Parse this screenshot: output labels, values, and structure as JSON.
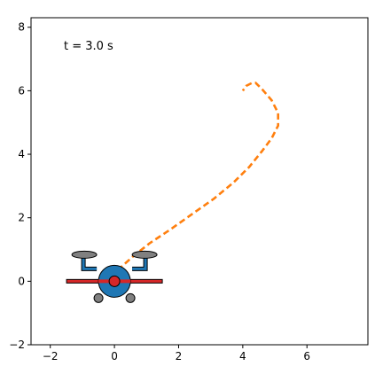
{
  "chart_data": {
    "type": "line",
    "title": "",
    "xlabel": "",
    "ylabel": "",
    "xlim": [
      -2.6,
      7.9
    ],
    "ylim": [
      -2.0,
      8.3
    ],
    "xticks": [
      -2,
      0,
      2,
      4,
      6
    ],
    "xtick_labels": [
      "−2",
      "0",
      "2",
      "4",
      "6"
    ],
    "yticks": [
      -2,
      0,
      2,
      4,
      6,
      8
    ],
    "ytick_labels": [
      "−2",
      "0",
      "2",
      "4",
      "6",
      "8"
    ],
    "grid": false,
    "annotation": "t = 3.0 s",
    "series": [
      {
        "style": "dashed",
        "color": "#ff7f0e",
        "x": [
          0.1,
          0.6,
          1.1,
          1.7,
          2.4,
          3.1,
          3.7,
          4.2,
          4.6,
          4.9,
          5.1,
          5.1,
          4.9,
          4.6,
          4.4,
          4.3,
          4.1,
          4.0
        ],
        "y": [
          0.35,
          0.8,
          1.2,
          1.6,
          2.1,
          2.6,
          3.1,
          3.6,
          4.1,
          4.5,
          4.9,
          5.3,
          5.7,
          6.05,
          6.25,
          6.25,
          6.15,
          6.0
        ]
      }
    ],
    "drone": {
      "x": 0.0,
      "y": 0.0,
      "colors": {
        "body": "#1f77b4",
        "center": "#d62728",
        "arm": "#d62728",
        "rotor": "#808080",
        "frame": "#1f77b4",
        "wheel": "#808080"
      }
    }
  }
}
